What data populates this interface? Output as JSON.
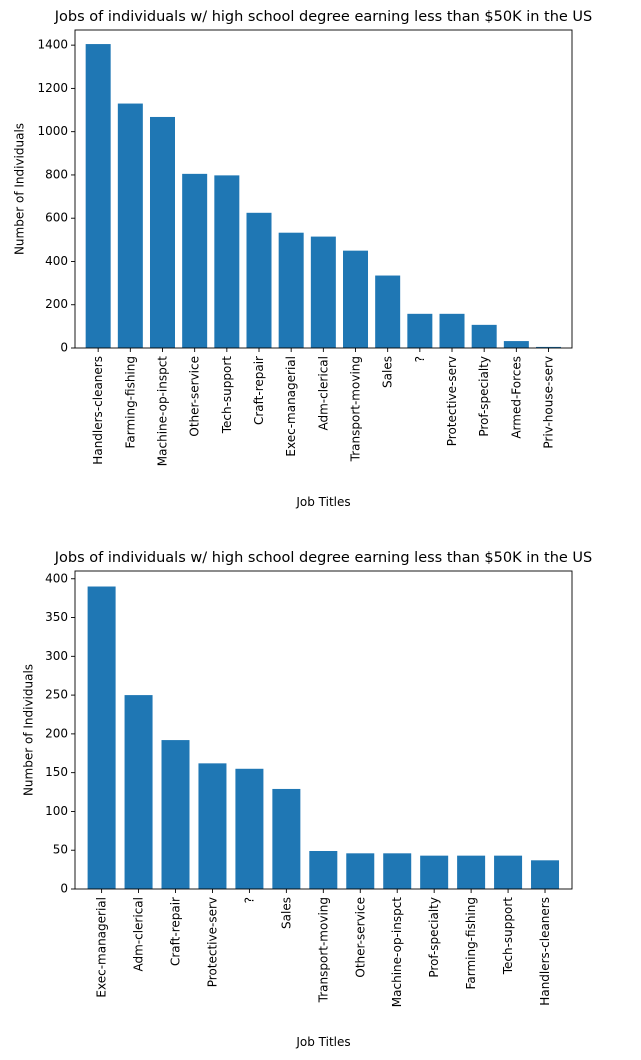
{
  "chart_data": [
    {
      "type": "bar",
      "title": "Jobs of individuals w/ high school degree earning less than $50K in the US",
      "xlabel": "Job Titles",
      "ylabel": "Number of Individuals",
      "categories": [
        "Handlers-cleaners",
        "Farming-fishing",
        "Machine-op-inspct",
        "Other-service",
        "Tech-support",
        "Craft-repair",
        "Exec-managerial",
        "Adm-clerical",
        "Transport-moving",
        "Sales",
        "?",
        "Protective-serv",
        "Prof-specialty",
        "Armed-Forces",
        "Priv-house-serv"
      ],
      "values": [
        1405,
        1130,
        1068,
        805,
        798,
        625,
        533,
        515,
        450,
        335,
        158,
        158,
        107,
        32,
        5
      ],
      "ylim": [
        0,
        1470
      ],
      "yticks": [
        0,
        200,
        400,
        600,
        800,
        1000,
        1200,
        1400
      ],
      "color": "#1f77b4",
      "grid": false
    },
    {
      "type": "bar",
      "title": "Jobs of individuals w/ high school degree earning less than $50K in the US",
      "xlabel": "Job Titles",
      "ylabel": "Number of Individuals",
      "categories": [
        "Exec-managerial",
        "Adm-clerical",
        "Craft-repair",
        "Protective-serv",
        "?",
        "Sales",
        "Transport-moving",
        "Other-service",
        "Machine-op-inspct",
        "Prof-specialty",
        "Farming-fishing",
        "Tech-support",
        "Handlers-cleaners"
      ],
      "values": [
        390,
        250,
        192,
        162,
        155,
        129,
        49,
        46,
        46,
        43,
        43,
        43,
        37
      ],
      "ylim": [
        0,
        410
      ],
      "yticks": [
        0,
        50,
        100,
        150,
        200,
        250,
        300,
        350,
        400
      ],
      "color": "#1f77b4",
      "grid": false
    }
  ]
}
